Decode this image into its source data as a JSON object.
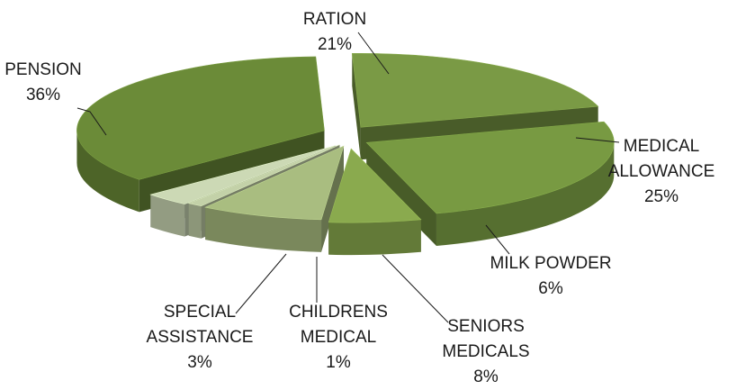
{
  "chart_data": {
    "type": "pie",
    "title": "",
    "legend": "none",
    "slices": [
      {
        "label_lines": [
          "RATION"
        ],
        "percent_label": "21%",
        "value": 21,
        "color": "#7a9a45"
      },
      {
        "label_lines": [
          "MEDICAL",
          "ALLOWANCE"
        ],
        "percent_label": "25%",
        "value": 25,
        "color": "#789a42"
      },
      {
        "label_lines": [
          "MILK POWDER"
        ],
        "percent_label": "6%",
        "value": 6,
        "color": "#8aaa4e"
      },
      {
        "label_lines": [
          "SENIORS",
          "MEDICALS"
        ],
        "percent_label": "8%",
        "value": 8,
        "color": "#a9bd80"
      },
      {
        "label_lines": [
          "CHILDRENS",
          "MEDICAL"
        ],
        "percent_label": "1%",
        "value": 1,
        "color": "#c3d1a8"
      },
      {
        "label_lines": [
          "SPECIAL",
          "ASSISTANCE"
        ],
        "percent_label": "3%",
        "value": 3,
        "color": "#ccd9b5"
      },
      {
        "label_lines": [
          "PENSION"
        ],
        "percent_label": "36%",
        "value": 36,
        "color": "#6b8b38"
      }
    ]
  }
}
